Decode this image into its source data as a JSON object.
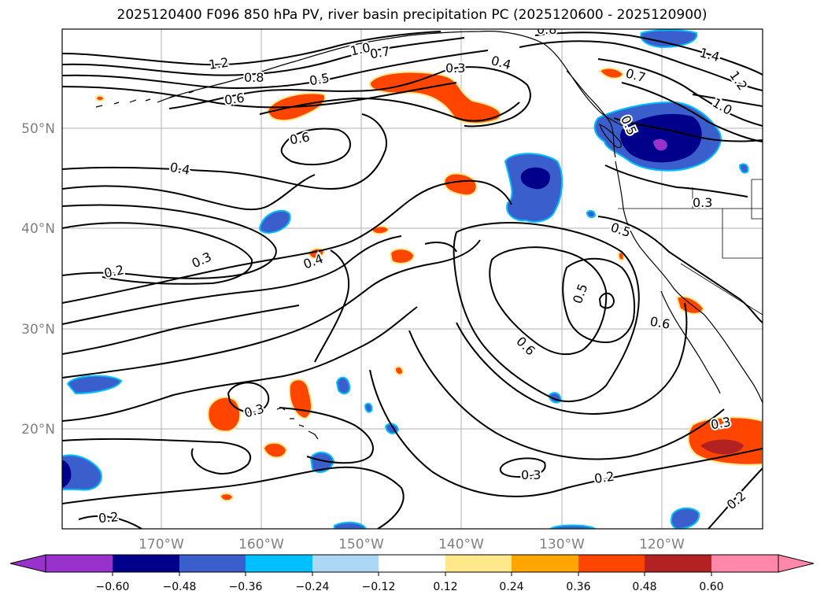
{
  "title": "2025120400 F096 850 hPa PV, river basin precipitation PC (2025120600 - 2025120900)",
  "map": {
    "lon_ticks": [
      "170°W",
      "160°W",
      "150°W",
      "140°W",
      "130°W",
      "120°W"
    ],
    "lat_ticks": [
      "50°N",
      "40°N",
      "30°N",
      "20°N"
    ],
    "contour_labels": [
      {
        "id": "c1",
        "text": "1.2"
      },
      {
        "id": "c2",
        "text": "0.8"
      },
      {
        "id": "c3",
        "text": "1.0"
      },
      {
        "id": "c4",
        "text": "0.7"
      },
      {
        "id": "c5",
        "text": "0.5"
      },
      {
        "id": "c6",
        "text": "0.6"
      },
      {
        "id": "c7",
        "text": "0.3"
      },
      {
        "id": "c8",
        "text": "0.4"
      },
      {
        "id": "c9",
        "text": "0.8"
      },
      {
        "id": "c10",
        "text": "1.4"
      },
      {
        "id": "c11",
        "text": "0.7"
      },
      {
        "id": "c12",
        "text": "1.2"
      },
      {
        "id": "c13",
        "text": "1.0"
      },
      {
        "id": "c14",
        "text": "0.5"
      },
      {
        "id": "c15",
        "text": "0.6"
      },
      {
        "id": "c16",
        "text": "0.4"
      },
      {
        "id": "c17",
        "text": "0.3"
      },
      {
        "id": "c18",
        "text": "0.2"
      },
      {
        "id": "c19",
        "text": "0.4"
      },
      {
        "id": "c20",
        "text": "0.5"
      },
      {
        "id": "c21",
        "text": "0.5"
      },
      {
        "id": "c22",
        "text": "0.6"
      },
      {
        "id": "c23",
        "text": "0.6"
      },
      {
        "id": "c24",
        "text": "0.3"
      },
      {
        "id": "c25",
        "text": "0.3"
      },
      {
        "id": "c26",
        "text": "0.2"
      },
      {
        "id": "c27",
        "text": "0.3"
      },
      {
        "id": "c28",
        "text": "0.2"
      },
      {
        "id": "c29",
        "text": "0.2"
      }
    ]
  },
  "colorbar": {
    "tick_labels": [
      "−0.60",
      "−0.48",
      "−0.36",
      "−0.24",
      "−0.12",
      "0.12",
      "0.24",
      "0.36",
      "0.48",
      "0.60"
    ],
    "colors": [
      "#9932cc",
      "#00008b",
      "#3a5fcd",
      "#00bfff",
      "#add8f5",
      "#ffffff",
      "#ffe88c",
      "#ffa500",
      "#ff4500",
      "#b22222",
      "#ff88aa"
    ]
  },
  "colors": {
    "deep_purple": "#9932cc",
    "navy": "#00008b",
    "royal_blue": "#3a5fcd",
    "sky_blue": "#00bfff",
    "pale_blue": "#add8f5",
    "pale_yellow": "#ffe88c",
    "orange": "#ffa500",
    "orange_red": "#ff4500",
    "firebrick": "#b22222",
    "pink": "#ff88aa",
    "axis_tick": "#808080"
  }
}
